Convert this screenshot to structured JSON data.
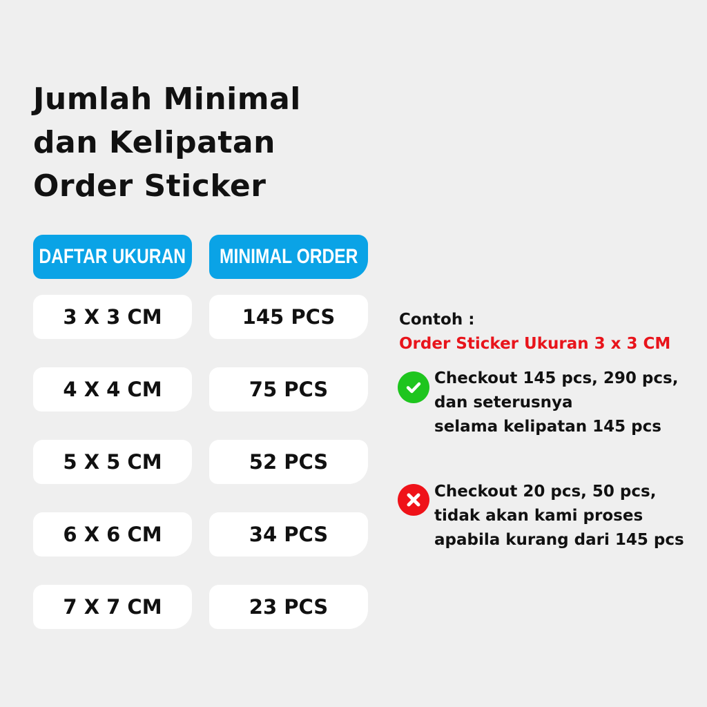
{
  "title": {
    "lines": [
      "Jumlah Minimal",
      "dan Kelipatan",
      "Order Sticker"
    ]
  },
  "table": {
    "headers": [
      "DAFTAR UKURAN",
      "MINIMAL ORDER"
    ],
    "rows": [
      {
        "size": "3 X 3 CM",
        "min": "145 PCS"
      },
      {
        "size": "4 X 4 CM",
        "min": "75 PCS"
      },
      {
        "size": "5 X 5 CM",
        "min": "52 PCS"
      },
      {
        "size": "6 X 6 CM",
        "min": "34 PCS"
      },
      {
        "size": "7 X 7 CM",
        "min": "23 PCS"
      }
    ]
  },
  "example": {
    "label": "Contoh :",
    "subtitle": "Order Sticker Ukuran 3 x 3 CM",
    "good": {
      "icon": "check-circle-icon",
      "lines": [
        "Checkout 145 pcs, 290 pcs,",
        "dan seterusnya",
        "selama kelipatan 145 pcs"
      ]
    },
    "bad": {
      "icon": "x-circle-icon",
      "lines": [
        "Checkout 20 pcs, 50 pcs,",
        "tidak akan kami proses",
        "apabila kurang dari 145 pcs"
      ]
    }
  },
  "colors": {
    "accent": "#0aa3e6",
    "background": "#efefef",
    "highlight": "#e8141b",
    "ok": "#1ec51e",
    "error": "#ef1219"
  }
}
